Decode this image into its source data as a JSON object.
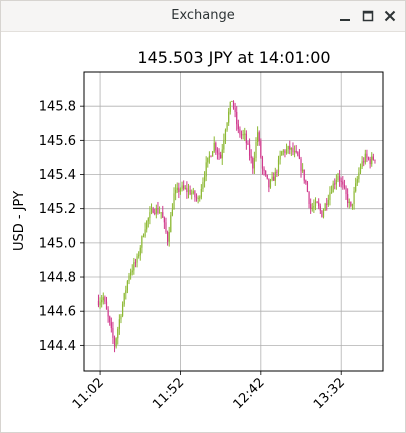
{
  "window": {
    "title": "Exchange",
    "buttons": {
      "minimize": "minimize-icon",
      "maximize": "maximize-icon",
      "close": "close-icon"
    }
  },
  "chart_data": {
    "type": "candlestick",
    "title": "145.503 JPY at 14:01:00",
    "xlabel": "",
    "ylabel": "USD - JPY",
    "x_ticks": [
      "11:02",
      "11:52",
      "12:42",
      "13:32"
    ],
    "x_tick_minutes": [
      662,
      712,
      762,
      812
    ],
    "x_range_minutes": [
      652,
      838
    ],
    "y_ticks": [
      "144.4",
      "144.6",
      "144.8",
      "145.0",
      "145.2",
      "145.4",
      "145.6",
      "145.8"
    ],
    "ylim": [
      144.25,
      146.0
    ],
    "grid": true,
    "start_minute": 661,
    "bar_interval_minutes": 1,
    "up_color": "#8cb833",
    "down_color": "#d0388c",
    "close_path": [
      [
        661,
        144.66
      ],
      [
        664,
        144.68
      ],
      [
        668,
        144.52
      ],
      [
        671,
        144.4
      ],
      [
        674,
        144.55
      ],
      [
        680,
        144.82
      ],
      [
        685,
        144.9
      ],
      [
        690,
        145.1
      ],
      [
        695,
        145.2
      ],
      [
        700,
        145.18
      ],
      [
        704,
        145.02
      ],
      [
        708,
        145.28
      ],
      [
        712,
        145.32
      ],
      [
        718,
        145.3
      ],
      [
        723,
        145.25
      ],
      [
        728,
        145.45
      ],
      [
        733,
        145.58
      ],
      [
        737,
        145.5
      ],
      [
        740,
        145.68
      ],
      [
        744,
        145.84
      ],
      [
        748,
        145.65
      ],
      [
        752,
        145.62
      ],
      [
        757,
        145.45
      ],
      [
        760,
        145.65
      ],
      [
        763,
        145.43
      ],
      [
        767,
        145.33
      ],
      [
        771,
        145.4
      ],
      [
        775,
        145.53
      ],
      [
        780,
        145.55
      ],
      [
        785,
        145.5
      ],
      [
        790,
        145.35
      ],
      [
        793,
        145.2
      ],
      [
        797,
        145.22
      ],
      [
        800,
        145.17
      ],
      [
        805,
        145.3
      ],
      [
        810,
        145.4
      ],
      [
        814,
        145.3
      ],
      [
        818,
        145.2
      ],
      [
        821,
        145.33
      ],
      [
        824,
        145.45
      ],
      [
        827,
        145.5
      ],
      [
        830,
        145.48
      ],
      [
        833,
        145.5
      ]
    ]
  }
}
